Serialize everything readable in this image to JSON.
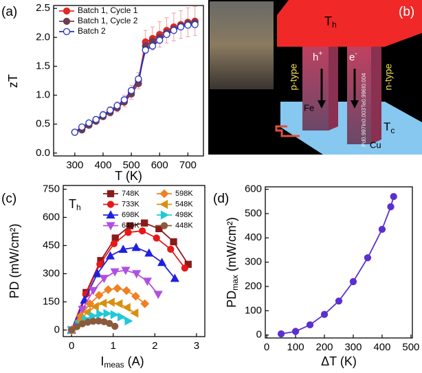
{
  "chart_data": [
    {
      "type": "line",
      "panel": "(a)",
      "xlabel": "T (K)",
      "ylabel": "zT",
      "xlim": [
        225,
        755
      ],
      "ylim": [
        -0.05,
        2.55
      ],
      "xticks": [
        300,
        400,
        500,
        600,
        700
      ],
      "yticks": [
        {
          "value": 0,
          "label": "0.0"
        },
        0.5,
        {
          "value": 1,
          "label": "1.0"
        },
        1.5,
        {
          "value": 2,
          "label": "2.0"
        },
        2.5
      ],
      "x": [
        300,
        325,
        350,
        375,
        400,
        425,
        450,
        475,
        500,
        525,
        550,
        575,
        600,
        625,
        650,
        675,
        700,
        725
      ],
      "series": [
        {
          "name": "Batch 1, Cycle 1",
          "color": "#e02828",
          "marker": "circle",
          "filled": true,
          "values": [
            0.36,
            0.42,
            0.5,
            0.57,
            0.65,
            0.72,
            0.8,
            0.9,
            1.05,
            1.25,
            1.92,
            1.98,
            2.05,
            2.12,
            2.18,
            2.22,
            2.26,
            2.28
          ],
          "errors": [
            0.03,
            0.04,
            0.05,
            0.06,
            0.07,
            0.08,
            0.09,
            0.1,
            0.12,
            0.14,
            0.2,
            0.2,
            0.22,
            0.22,
            0.24,
            0.24,
            0.25,
            0.25
          ]
        },
        {
          "name": "Batch 1, Cycle 2",
          "color": "#6e3b50",
          "marker": "circle",
          "filled": true,
          "values": [
            0.36,
            0.4,
            0.48,
            0.55,
            0.63,
            0.7,
            0.78,
            0.88,
            1.02,
            1.2,
            1.85,
            1.93,
            2.0,
            2.08,
            2.14,
            2.2,
            2.24,
            2.26
          ]
        },
        {
          "name": "Batch 2",
          "color": "#2233c0",
          "marker": "circle",
          "filled": false,
          "values": [
            0.36,
            0.45,
            0.52,
            0.58,
            0.66,
            0.74,
            0.82,
            0.92,
            1.08,
            1.28,
            1.78,
            1.85,
            1.95,
            2.05,
            2.12,
            2.18,
            2.21,
            2.22
          ]
        }
      ]
    },
    {
      "type": "line",
      "panel": "(c)",
      "xlabel": [
        "I",
        "meas",
        " (A)"
      ],
      "ylabel": "PD (mW/cm²)",
      "annotation": [
        "T",
        "h"
      ],
      "xlim": [
        -0.2,
        3.2
      ],
      "ylim": [
        -35,
        770
      ],
      "xticks": [
        0,
        1,
        2,
        3
      ],
      "yticks": [
        0,
        150,
        300,
        450,
        600,
        750
      ],
      "series": [
        {
          "name": "748K",
          "color": "#8b1a1a",
          "marker": "square",
          "x": [
            0,
            0.35,
            0.7,
            1.05,
            1.4,
            1.75,
            2.1,
            2.45,
            2.8
          ],
          "values": [
            0,
            200,
            370,
            490,
            555,
            570,
            540,
            470,
            350
          ]
        },
        {
          "name": "733K",
          "color": "#e81818",
          "marker": "circle",
          "x": [
            0,
            0.34,
            0.68,
            1.02,
            1.36,
            1.7,
            2.04,
            2.38,
            2.72
          ],
          "values": [
            0,
            190,
            350,
            460,
            520,
            528,
            490,
            430,
            330
          ]
        },
        {
          "name": "698K",
          "color": "#2020e0",
          "marker": "triangle-up",
          "x": [
            0,
            0.31,
            0.62,
            0.93,
            1.24,
            1.55,
            1.86,
            2.17,
            2.48
          ],
          "values": [
            0,
            160,
            300,
            395,
            430,
            440,
            410,
            360,
            275
          ]
        },
        {
          "name": "648K",
          "color": "#b050e0",
          "marker": "triangle-down",
          "x": [
            0,
            0.26,
            0.52,
            0.78,
            1.04,
            1.3,
            1.56,
            1.82,
            2.08
          ],
          "values": [
            0,
            110,
            210,
            275,
            310,
            318,
            300,
            260,
            190
          ]
        },
        {
          "name": "598K",
          "color": "#f08020",
          "marker": "diamond",
          "x": [
            0,
            0.22,
            0.44,
            0.66,
            0.88,
            1.1,
            1.32,
            1.54,
            1.76
          ],
          "values": [
            0,
            75,
            140,
            185,
            215,
            222,
            210,
            180,
            140
          ]
        },
        {
          "name": "548K",
          "color": "#d89010",
          "marker": "triangle-left",
          "x": [
            0,
            0.19,
            0.38,
            0.57,
            0.76,
            0.95,
            1.14,
            1.33,
            1.52
          ],
          "values": [
            0,
            50,
            95,
            125,
            143,
            148,
            140,
            120,
            90
          ]
        },
        {
          "name": "498K",
          "color": "#20c8d8",
          "marker": "triangle-right",
          "x": [
            0,
            0.17,
            0.34,
            0.51,
            0.68,
            0.85,
            1.02,
            1.19,
            1.36
          ],
          "values": [
            0,
            30,
            58,
            75,
            85,
            88,
            82,
            70,
            48
          ]
        },
        {
          "name": "448K",
          "color": "#8b5a3c",
          "marker": "circle",
          "x": [
            0,
            0.13,
            0.26,
            0.39,
            0.52,
            0.65,
            0.78,
            0.91,
            1.04
          ],
          "values": [
            0,
            18,
            33,
            42,
            47,
            48,
            44,
            35,
            20
          ]
        }
      ]
    },
    {
      "type": "line",
      "panel": "(d)",
      "xlabel": "ΔT (K)",
      "ylabel": [
        "PD",
        "max",
        " (mW/cm²)"
      ],
      "xlim": [
        -5,
        505
      ],
      "ylim": [
        -12,
        610
      ],
      "xticks": [
        0,
        100,
        200,
        300,
        400,
        500
      ],
      "yticks": [
        0,
        100,
        200,
        300,
        400,
        500,
        600
      ],
      "x": [
        50,
        100,
        150,
        200,
        250,
        300,
        350,
        400,
        430,
        440
      ],
      "series": [
        {
          "name": null,
          "color": "#5a30d0",
          "marker": "circle",
          "values": [
            5,
            15,
            42,
            85,
            140,
            220,
            318,
            435,
            528,
            570
          ]
        }
      ]
    }
  ],
  "panel_b": {
    "label": "(b)",
    "hot": [
      "T",
      "h"
    ],
    "cold": [
      "T",
      "c"
    ],
    "p_type": "p-type",
    "n_type": "n-type",
    "hole": [
      "h",
      "+"
    ],
    "electron": [
      "e",
      "-"
    ],
    "fe": "Fe",
    "cu": "Cu",
    "formula": "Pd0.997In0.003Te0.996I0.004"
  }
}
